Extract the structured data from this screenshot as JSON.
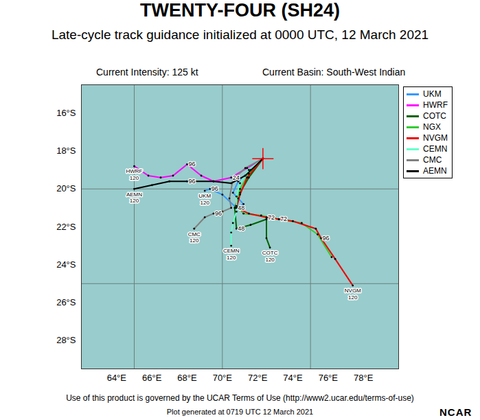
{
  "chart_data": {
    "type": "line",
    "title": "TWENTY-FOUR (SH24)",
    "subtitle": "Late-cycle track guidance initialized at 0000 UTC, 12 March 2021",
    "annotations": [
      "Current Intensity: 125 kt",
      "Current Basin: South-West Indian"
    ],
    "caption": "Use of this product is governed by the UCAR Terms of Use (http://www2.ucar.edu/terms-of-use)",
    "footer": "Plot generated at 0719 UTC  12 March 2021",
    "logo": "NCAR",
    "xlim": [
      62,
      80
    ],
    "ylim": [
      -29.5,
      -14.5
    ],
    "xticks": [
      {
        "value": 64,
        "label": "64°E"
      },
      {
        "value": 66,
        "label": "66°E"
      },
      {
        "value": 68,
        "label": "68°E"
      },
      {
        "value": 70,
        "label": "70°E"
      },
      {
        "value": 72,
        "label": "72°E"
      },
      {
        "value": 74,
        "label": "74°E"
      },
      {
        "value": 76,
        "label": "76°E"
      },
      {
        "value": 78,
        "label": "78°E"
      }
    ],
    "yticks": [
      {
        "value": -16,
        "label": "16°S"
      },
      {
        "value": -18,
        "label": "18°S"
      },
      {
        "value": -20,
        "label": "20°S"
      },
      {
        "value": -22,
        "label": "22°S"
      },
      {
        "value": -24,
        "label": "24°S"
      },
      {
        "value": -26,
        "label": "26°S"
      },
      {
        "value": -28,
        "label": "28°S"
      }
    ],
    "gridlines": {
      "x": [
        65,
        70,
        75
      ],
      "y": [
        -20,
        -25
      ]
    },
    "current_position": [
      72.3,
      -18.4
    ],
    "legend": "right",
    "series": [
      {
        "name": "UKM",
        "color": "#3399ff",
        "x": [
          72.3,
          71.6,
          70.9,
          70.6,
          70.9,
          71.2,
          70.8,
          70.0,
          69.3,
          69.0
        ],
        "values": [
          -18.4,
          -19.0,
          -19.6,
          -20.2,
          -20.5,
          -20.8,
          -21.0,
          -20.3,
          -20.0,
          -20.1
        ],
        "hours": [
          null,
          null,
          null,
          null,
          null,
          null,
          null,
          null,
          96,
          120
        ]
      },
      {
        "name": "HWRF",
        "color": "#ff00ff",
        "x": [
          72.3,
          71.4,
          70.5,
          69.5,
          68.8,
          68.0,
          67.2,
          66.5,
          65.8,
          65.0
        ],
        "values": [
          -18.4,
          -18.9,
          -19.4,
          -19.6,
          -19.3,
          -18.7,
          -19.3,
          -19.4,
          -19.3,
          -18.8
        ],
        "hours": [
          null,
          null,
          24,
          null,
          null,
          96,
          null,
          null,
          null,
          120
        ]
      },
      {
        "name": "COTC",
        "color": "#006400",
        "x": [
          72.3,
          71.5,
          71.0,
          70.7,
          70.8,
          71.6,
          72.5,
          72.5,
          72.7
        ],
        "values": [
          -18.4,
          -19.4,
          -20.2,
          -21.0,
          -22.1,
          -21.9,
          -21.6,
          -22.6,
          -23.1
        ],
        "hours": [
          null,
          null,
          null,
          null,
          48,
          null,
          null,
          null,
          120
        ]
      },
      {
        "name": "NGX",
        "color": "#33cc33",
        "x": [
          72.3,
          71.5,
          71.0,
          70.8,
          71.2,
          72.2,
          73.2,
          74.5,
          75.4,
          76.2
        ],
        "values": [
          -18.4,
          -19.2,
          -20.0,
          -20.9,
          -21.3,
          -21.4,
          -21.6,
          -21.8,
          -22.4,
          -23.6
        ],
        "hours": [
          null,
          null,
          null,
          null,
          null,
          null,
          72,
          null,
          null,
          null
        ]
      },
      {
        "name": "NVGM",
        "color": "#ee0000",
        "x": [
          72.3,
          71.4,
          71.0,
          70.8,
          71.5,
          72.5,
          74.0,
          75.3,
          75.6,
          76.4,
          77.4
        ],
        "values": [
          -18.4,
          -19.4,
          -20.3,
          -21.0,
          -21.3,
          -21.5,
          -21.7,
          -22.1,
          -22.6,
          -23.7,
          -25.1
        ],
        "hours": [
          null,
          null,
          null,
          48,
          null,
          72,
          null,
          null,
          96,
          null,
          120
        ]
      },
      {
        "name": "CEMN",
        "color": "#66ffcc",
        "x": [
          72.3,
          71.5,
          71.0,
          70.8,
          70.8,
          70.6,
          70.5,
          70.5
        ],
        "values": [
          -18.4,
          -19.0,
          -19.7,
          -20.4,
          -21.2,
          -21.8,
          -22.3,
          -23.0
        ],
        "hours": [
          null,
          null,
          null,
          null,
          null,
          null,
          null,
          120
        ]
      },
      {
        "name": "CMC",
        "color": "#808080",
        "x": [
          72.3,
          71.3,
          70.6,
          70.4,
          70.5,
          70.0,
          69.5,
          69.0,
          68.4
        ],
        "values": [
          -18.4,
          -18.9,
          -19.5,
          -20.5,
          -21.0,
          -21.2,
          -21.3,
          -21.5,
          -22.1
        ],
        "hours": [
          null,
          null,
          null,
          null,
          null,
          null,
          96,
          null,
          120
        ]
      },
      {
        "name": "AEMN",
        "color": "#000000",
        "x": [
          72.3,
          71.3,
          70.5,
          69.5,
          68.0,
          67.0,
          66.0,
          65.0
        ],
        "values": [
          -18.4,
          -19.3,
          -19.7,
          -19.6,
          -19.6,
          -19.6,
          -19.8,
          -20.0
        ],
        "hours": [
          null,
          null,
          null,
          null,
          96,
          null,
          null,
          120
        ]
      }
    ]
  }
}
